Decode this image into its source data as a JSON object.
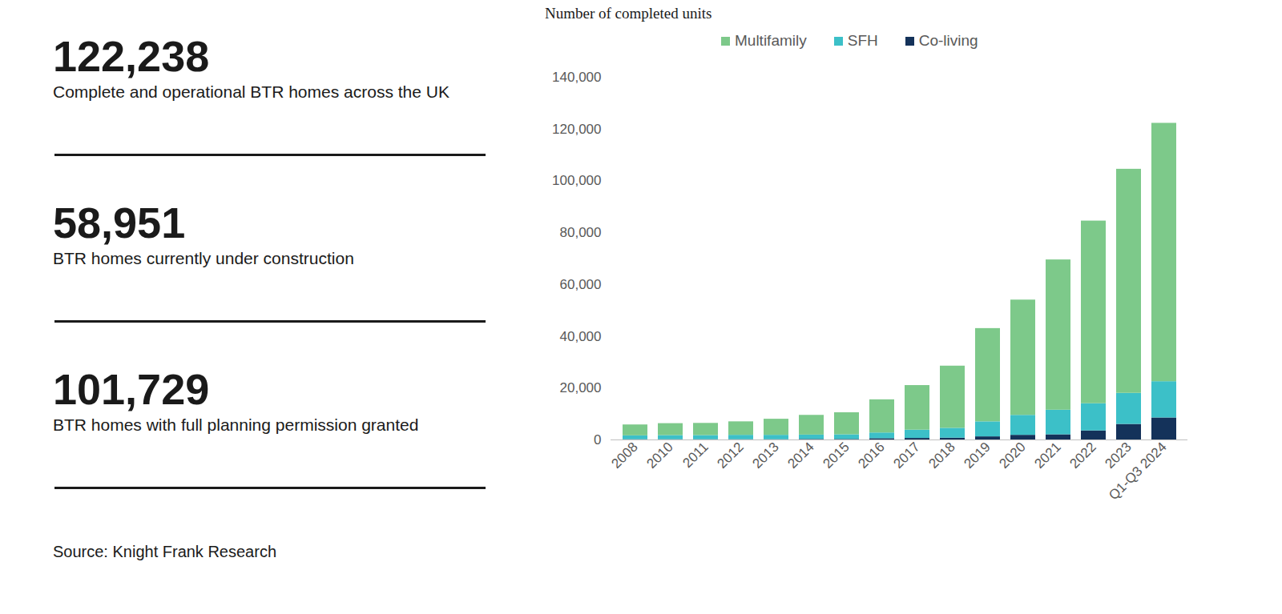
{
  "chart_data": {
    "type": "bar",
    "stacked": true,
    "legend": "top",
    "ylabel": "Number of completed units",
    "categories": [
      "2008",
      "2010",
      "2011",
      "2012",
      "2013",
      "2014",
      "2015",
      "2016",
      "2017",
      "2018",
      "2019",
      "2020",
      "2021",
      "2022",
      "2023",
      "Q1-Q3 2024"
    ],
    "series": [
      {
        "name": "Multifamily",
        "color": "#7dc98a",
        "values": [
          4200,
          4600,
          4700,
          5200,
          6200,
          7600,
          8500,
          12800,
          17200,
          24000,
          36000,
          44500,
          58000,
          70500,
          86500,
          99738
        ]
      },
      {
        "name": "SFH",
        "color": "#3cc0c8",
        "values": [
          1500,
          1600,
          1600,
          1700,
          1700,
          1700,
          1800,
          2200,
          3200,
          3800,
          5800,
          7700,
          9500,
          10500,
          12000,
          14000
        ]
      },
      {
        "name": "Co-living",
        "color": "#14325a",
        "values": [
          100,
          100,
          100,
          100,
          100,
          200,
          200,
          500,
          600,
          700,
          1200,
          1800,
          2000,
          3500,
          6000,
          8500
        ]
      }
    ],
    "ylim": [
      0,
      140000
    ],
    "yticks": [
      0,
      {
        "value": 20000,
        "label": "20,000"
      },
      {
        "value": 40000,
        "label": "40,000"
      },
      {
        "value": 60000,
        "label": "60,000"
      },
      {
        "value": 80000,
        "label": "80,000"
      },
      {
        "value": 100000,
        "label": "100,000"
      },
      {
        "value": 120000,
        "label": "120,000"
      },
      {
        "value": 140000,
        "label": "140,000"
      }
    ],
    "grid": false
  },
  "stats": [
    {
      "value": "122,238",
      "label": "Complete and operational BTR homes across the UK"
    },
    {
      "value": "58,951",
      "label": "BTR homes currently under construction"
    },
    {
      "value": "101,729",
      "label": "BTR homes with full planning permission granted"
    }
  ],
  "source": "Source: Knight Frank Research"
}
